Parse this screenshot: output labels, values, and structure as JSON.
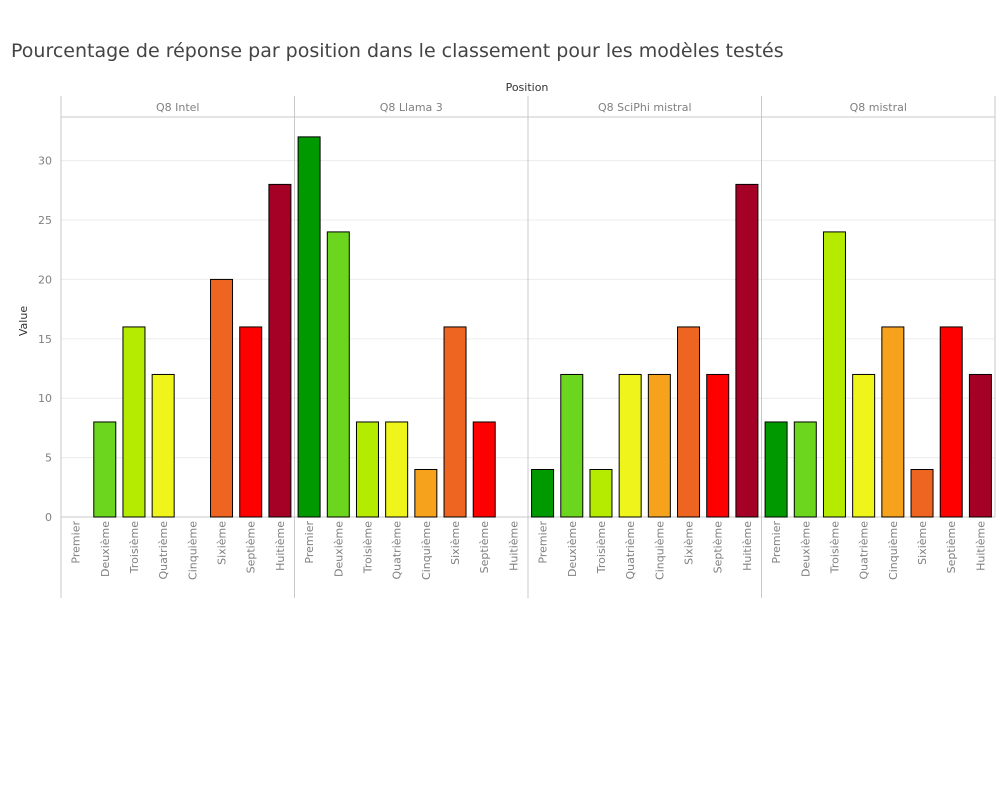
{
  "chart_data": {
    "type": "bar",
    "title": "Pourcentage de réponse par position dans le classement pour les modèles testés",
    "column_header": "Position",
    "ylabel": "Value",
    "ylim": [
      0,
      33
    ],
    "yticks": [
      0,
      5,
      10,
      15,
      20,
      25,
      30
    ],
    "grid": true,
    "categories": [
      "Premier",
      "Deuxième",
      "Troisième",
      "Quatrième",
      "Cinquième",
      "Sixième",
      "Septième",
      "Huitième"
    ],
    "colors": [
      "#009a00",
      "#6cd61e",
      "#b5eb00",
      "#eff51b",
      "#f6a21c",
      "#ee6522",
      "#ff0000",
      "#a50026"
    ],
    "panels": [
      {
        "name": "Q8 Intel",
        "values": [
          0,
          8,
          16,
          12,
          0,
          20,
          16,
          28
        ]
      },
      {
        "name": "Q8 Llama 3",
        "values": [
          32,
          24,
          8,
          8,
          4,
          16,
          8,
          0
        ]
      },
      {
        "name": "Q8 SciPhi mistral",
        "values": [
          4,
          12,
          4,
          12,
          12,
          16,
          12,
          28
        ]
      },
      {
        "name": "Q8 mistral",
        "values": [
          8,
          8,
          24,
          12,
          16,
          4,
          16,
          12
        ]
      }
    ]
  }
}
